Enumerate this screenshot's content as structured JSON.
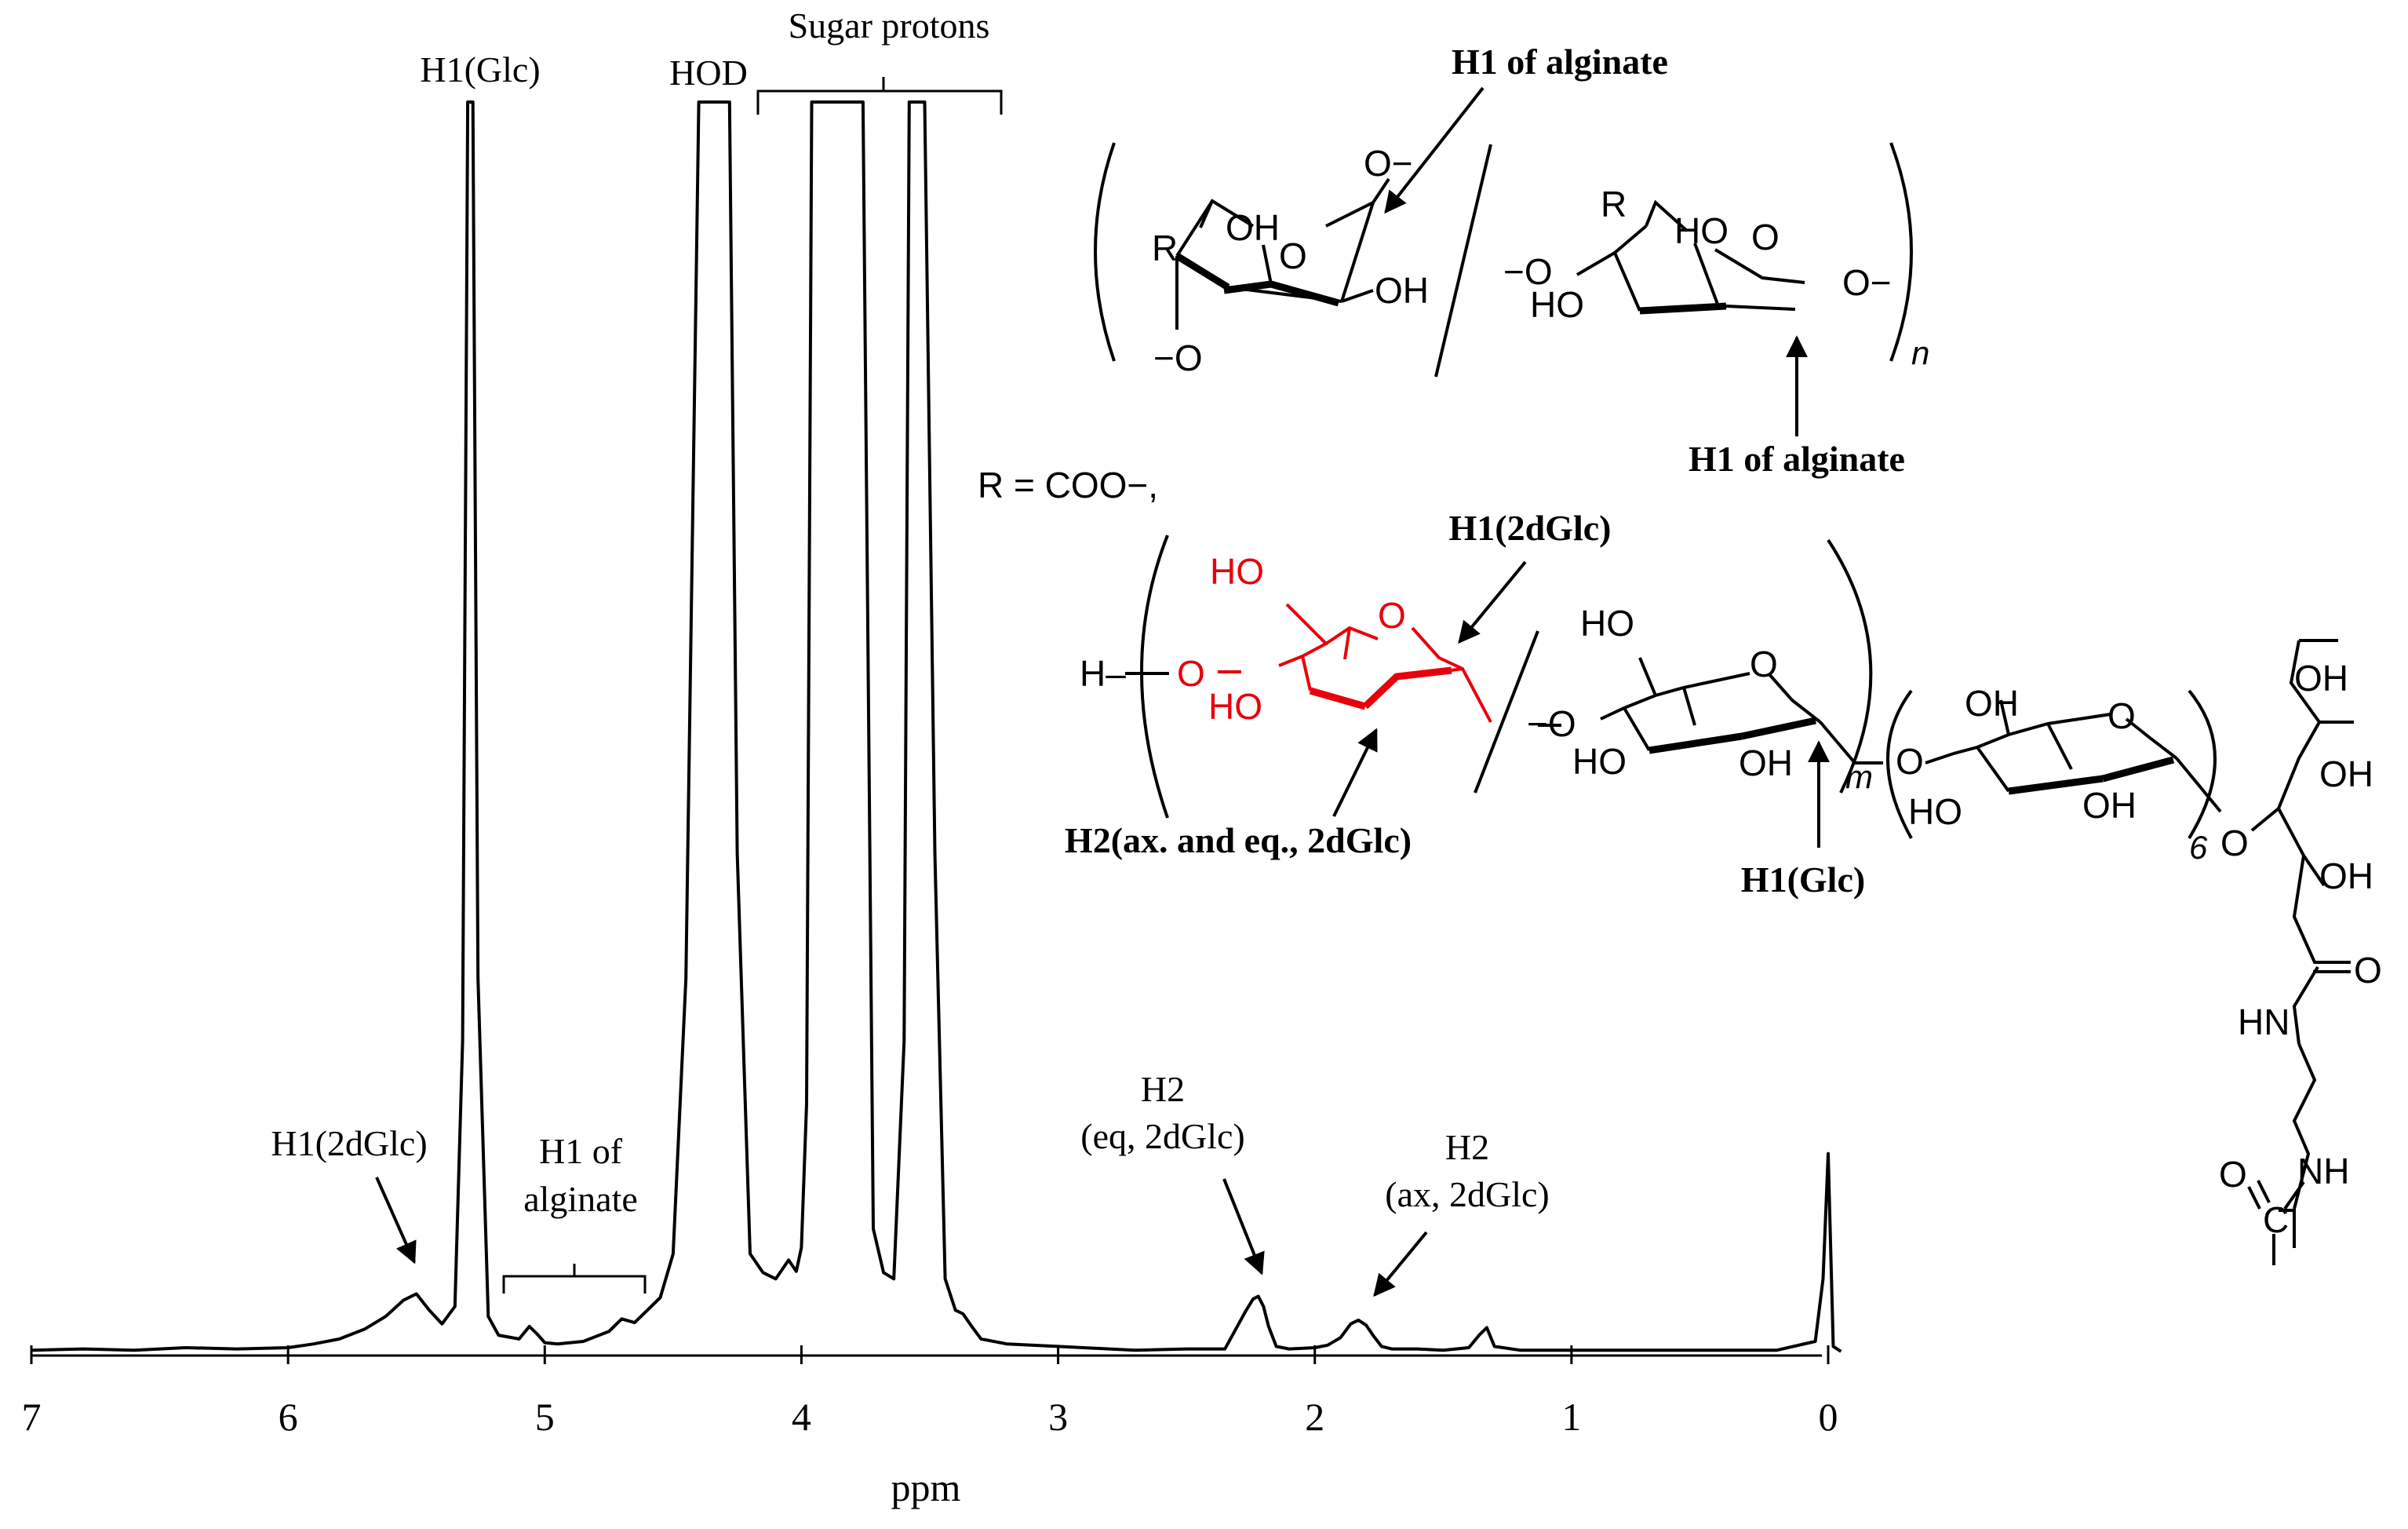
{
  "chart_data": {
    "type": "line",
    "title": "",
    "xlabel": "ppm",
    "ylabel": "",
    "x_reversed": true,
    "xlim": [
      7,
      0
    ],
    "ylim": [
      0,
      100
    ],
    "x_ticks": [
      "7",
      "6",
      "5",
      "4",
      "3",
      "2",
      "1",
      "0"
    ],
    "x_tick_values": [
      7,
      6,
      5,
      4,
      3,
      2,
      1,
      0
    ],
    "grid": false,
    "legend": "none",
    "series": [
      {
        "x": [
          7.0,
          6.8,
          6.6,
          6.4,
          6.2,
          6.0,
          5.9,
          5.8,
          5.7,
          5.62,
          5.55,
          5.5,
          5.45,
          5.4,
          5.35,
          5.32,
          5.3,
          5.28,
          5.26,
          5.22,
          5.18,
          5.1,
          5.06,
          5.03,
          5.0,
          4.95,
          4.85,
          4.75,
          4.7,
          4.65,
          4.6,
          4.55,
          4.5,
          4.45,
          4.4,
          4.37,
          4.34,
          4.31,
          4.28,
          4.25,
          4.2,
          4.15,
          4.1,
          4.05,
          4.02,
          4.0,
          3.98,
          3.96,
          3.93,
          3.9,
          3.86,
          3.82,
          3.79,
          3.76,
          3.72,
          3.68,
          3.64,
          3.6,
          3.58,
          3.55,
          3.52,
          3.48,
          3.44,
          3.4,
          3.37,
          3.34,
          3.3,
          3.2,
          3.0,
          2.8,
          2.7,
          2.5,
          2.35,
          2.27,
          2.24,
          2.22,
          2.2,
          2.18,
          2.15,
          2.1,
          2.0,
          1.95,
          1.9,
          1.86,
          1.83,
          1.8,
          1.77,
          1.74,
          1.7,
          1.6,
          1.5,
          1.4,
          1.36,
          1.33,
          1.3,
          1.2,
          1.0,
          0.8,
          0.5,
          0.2,
          0.05,
          0.02,
          0.0,
          -0.02,
          -0.05
        ],
        "y": [
          0.3,
          0.4,
          0.3,
          0.5,
          0.4,
          0.5,
          0.8,
          1.2,
          2.0,
          3.0,
          4.3,
          4.8,
          3.5,
          2.4,
          3.8,
          25,
          100,
          100,
          30,
          3.0,
          1.5,
          1.2,
          2.2,
          1.6,
          0.9,
          0.8,
          1.0,
          1.8,
          2.8,
          2.5,
          3.5,
          4.5,
          8,
          30,
          100,
          100,
          100,
          100,
          100,
          40,
          8,
          6.5,
          6.0,
          7.5,
          6.6,
          8.5,
          20,
          100,
          100,
          100,
          100,
          100,
          100,
          100,
          10,
          6.5,
          6.0,
          25,
          100,
          100,
          100,
          40,
          6,
          3.5,
          3.2,
          2.3,
          1.2,
          0.8,
          0.6,
          0.4,
          0.3,
          0.4,
          0.4,
          3.4,
          4.4,
          4.6,
          3.8,
          2.2,
          0.6,
          0.4,
          0.5,
          0.7,
          1.3,
          2.4,
          2.7,
          2.3,
          1.4,
          0.6,
          0.4,
          0.4,
          0.3,
          0.5,
          1.5,
          2.1,
          0.6,
          0.3,
          0.3,
          0.3,
          0.3,
          0.3,
          1.0,
          6.0,
          16.0,
          0.6,
          0.2
        ]
      }
    ],
    "annotations": {
      "h1_glc": "H1(Glc)",
      "hod": "HOD",
      "sugar_protons": "Sugar protons",
      "h1_2dglc": "H1(2dGlc)",
      "h1_alginate_line1": "H1 of",
      "h1_alginate_line2": "alginate",
      "h2_eq_line1": "H2",
      "h2_eq_line2": "(eq, 2dGlc)",
      "h2_ax_line1": "H2",
      "h2_ax_line2": "(ax, 2dGlc)"
    }
  },
  "structure": {
    "bold_h1_alginate_top": "H1 of alginate",
    "bold_h1_alginate_bottom": "H1 of alginate",
    "bold_h1_2dglc": "H1(2dGlc)",
    "bold_h2_2dglc": "H2(ax. and  eq., 2dGlc)",
    "bold_h1_glc": "H1(Glc)",
    "r_definition": "R = COO−,",
    "sub_n": "n",
    "sub_m": "m",
    "sub_6": "6",
    "atoms": {
      "o_minus_top": "O−",
      "oh": "OH",
      "ho": "HO",
      "o": "O",
      "r": "R",
      "minus_o": "−O",
      "h_minus": "H–",
      "hn": "HN",
      "nh": "NH",
      "c": "C",
      "eq_o": "O"
    },
    "colors": {
      "ink": "#000000",
      "highlight": "#e8000b"
    }
  }
}
